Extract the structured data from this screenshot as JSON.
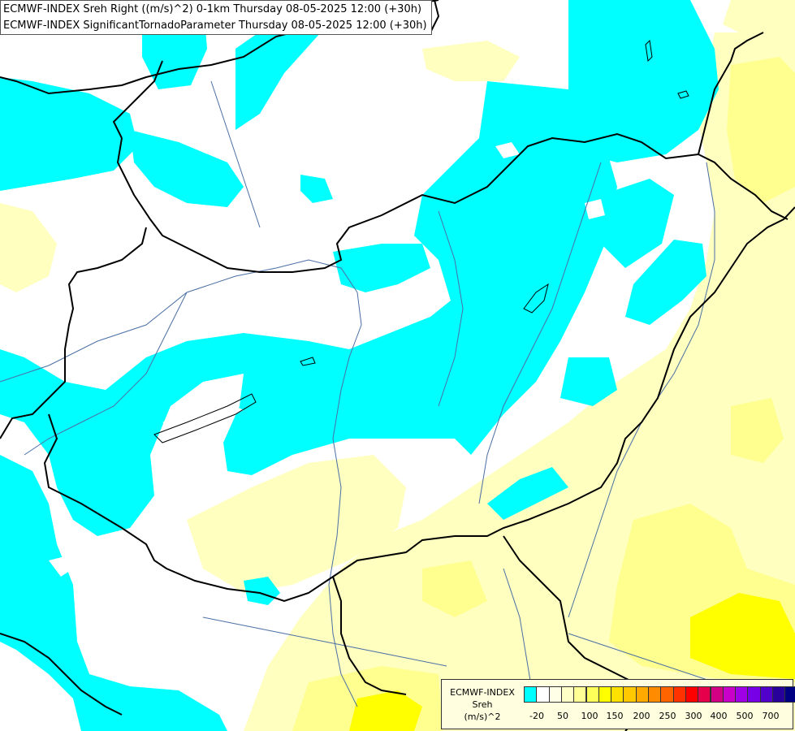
{
  "title": {
    "line1": "ECMWF-INDEX Sreh Right ((m/s)^2) 0-1km Thursday 08-05-2025 12:00 (+30h)",
    "line2": "ECMWF-INDEX SignificantTornadoParameter Thursday 08-05-2025 12:00 (+30h)"
  },
  "legend": {
    "title": [
      "ECMWF-INDEX",
      "Sreh",
      "(m/s)^2"
    ],
    "colors": [
      "#00ffff",
      "#ffffff",
      "#ffffe8",
      "#ffffc8",
      "#ffff96",
      "#ffff5a",
      "#ffff00",
      "#ffe100",
      "#ffc800",
      "#ffaa00",
      "#ff8c00",
      "#ff6400",
      "#ff3200",
      "#ff0000",
      "#e6004b",
      "#d20082",
      "#c800c8",
      "#a000e6",
      "#7800e6",
      "#5000c8",
      "#28009a",
      "#000082"
    ],
    "ticks": [
      "-20",
      "50",
      "100",
      "150",
      "200",
      "250",
      "300",
      "400",
      "500",
      "700"
    ]
  },
  "palette": {
    "cyan": "#00ffff",
    "light_yellow": "#ffffc0",
    "yellow": "#ffff80",
    "strong_yellow": "#ffff00",
    "borders": "#000000",
    "rivers": "#4a6fa5"
  }
}
